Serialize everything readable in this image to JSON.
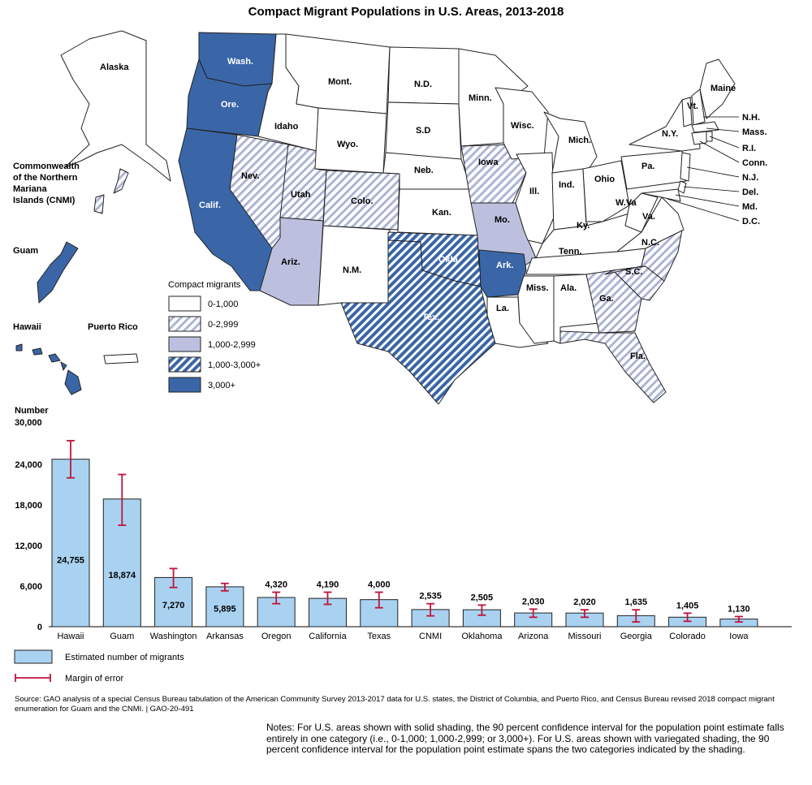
{
  "title": "Compact Migrant Populations in U.S. Areas, 2013-2018",
  "colors": {
    "solid_high": "#3a66a8",
    "light_purple": "#bcc0de",
    "white": "#ffffff",
    "stroke": "#222222",
    "bar_fill": "#a9d2f0",
    "error_bar": "#c0143c"
  },
  "map": {
    "legend_title": "Compact migrants",
    "legend": [
      {
        "label": "0-1,000",
        "fill": "white"
      },
      {
        "label": "0-2,999",
        "fill": "hatch-light"
      },
      {
        "label": "1,000-2,999",
        "fill": "light_purple"
      },
      {
        "label": "1,000-3,000+",
        "fill": "hatch-dark"
      },
      {
        "label": "3,000+",
        "fill": "solid_high"
      }
    ],
    "labels": {
      "alaska": "Alaska",
      "cnmi": "Commonwealth of the Northern Mariana Islands (CNMI)",
      "cnmi_l1": "Commonwealth",
      "cnmi_l2": "of the Northern",
      "cnmi_l3": "Mariana",
      "cnmi_l4": "Islands (CNMI)",
      "guam": "Guam",
      "hawaii": "Hawaii",
      "puerto_rico": "Puerto Rico",
      "wash": "Wash.",
      "ore": "Ore.",
      "calif": "Calif.",
      "idaho": "Idaho",
      "nev": "Nev.",
      "utah": "Utah",
      "ariz": "Ariz.",
      "mont": "Mont.",
      "wyo": "Wyo.",
      "colo": "Colo.",
      "nm": "N.M.",
      "nd": "N.D.",
      "sd": "S.D",
      "neb": "Neb.",
      "kan": "Kan.",
      "okla": "Okla.",
      "tex": "Tex.",
      "minn": "Minn.",
      "iowa": "Iowa",
      "mo": "Mo.",
      "ark": "Ark.",
      "la": "La.",
      "wisc": "Wisc.",
      "ill": "Ill.",
      "mich": "Mich.",
      "ind": "Ind.",
      "ohio": "Ohio",
      "ky": "Ky.",
      "tenn": "Tenn.",
      "miss": "Miss.",
      "ala": "Ala.",
      "ga": "Ga.",
      "fla": "Fla.",
      "sc": "S.C.",
      "nc": "N.C.",
      "va": "Va.",
      "wva": "W.Va",
      "pa": "Pa.",
      "ny": "N.Y.",
      "vt": "Vt.",
      "maine": "Maine",
      "nh": "N.H.",
      "mass": "Mass.",
      "ri": "R.I.",
      "conn": "Conn.",
      "nj": "N.J.",
      "del": "Del.",
      "md": "Md.",
      "dc": "D.C."
    }
  },
  "chart_data": {
    "type": "bar",
    "ylabel_line1": "Number",
    "ylabel_line2": "30,000",
    "ylim": [
      0,
      30000
    ],
    "yticks": [
      0,
      6000,
      12000,
      18000,
      24000
    ],
    "ytick_labels": [
      "0",
      "6,000",
      "12,000",
      "18,000",
      "24,000"
    ],
    "categories": [
      "Hawaii",
      "Guam",
      "Washington",
      "Arkansas",
      "Oregon",
      "California",
      "Texas",
      "CNMI",
      "Oklahoma",
      "Arizona",
      "Missouri",
      "Georgia",
      "Colorado",
      "Iowa"
    ],
    "values": [
      24755,
      18874,
      7270,
      5895,
      4320,
      4190,
      4000,
      2535,
      2505,
      2030,
      2020,
      1635,
      1405,
      1130
    ],
    "value_labels": [
      "24,755",
      "18,874",
      "7,270",
      "5,895",
      "4,320",
      "4,190",
      "4,000",
      "2,535",
      "2,505",
      "2,030",
      "2,020",
      "1,635",
      "1,405",
      "1,130"
    ],
    "error_low": [
      22000,
      15000,
      5800,
      5300,
      3400,
      3300,
      2800,
      1600,
      1700,
      1400,
      1400,
      700,
      800,
      700
    ],
    "error_high": [
      27500,
      22500,
      8600,
      6400,
      5100,
      5100,
      5100,
      3400,
      3200,
      2600,
      2500,
      2500,
      2000,
      1500
    ],
    "legend": [
      {
        "label": "Estimated number of migrants",
        "kind": "bar"
      },
      {
        "label": "Margin of error",
        "kind": "error"
      }
    ]
  },
  "source": "Source: GAO analysis of a special Census Bureau tabulation of the American Community Survey 2013-2017 data for U.S. states, the District of Columbia, and Puerto Rico, and Census Bureau revised 2018 compact migrant enumeration for Guam and the CNMI. |  GAO-20-491",
  "notes": "Notes: For U.S. areas shown with solid shading, the 90 percent confidence interval for the population point estimate falls entirely in one category (i.e., 0-1,000; 1,000-2,999; or 3,000+). For U.S. areas shown with variegated shading, the 90 percent confidence interval for the population point estimate spans the two categories indicated by the shading."
}
